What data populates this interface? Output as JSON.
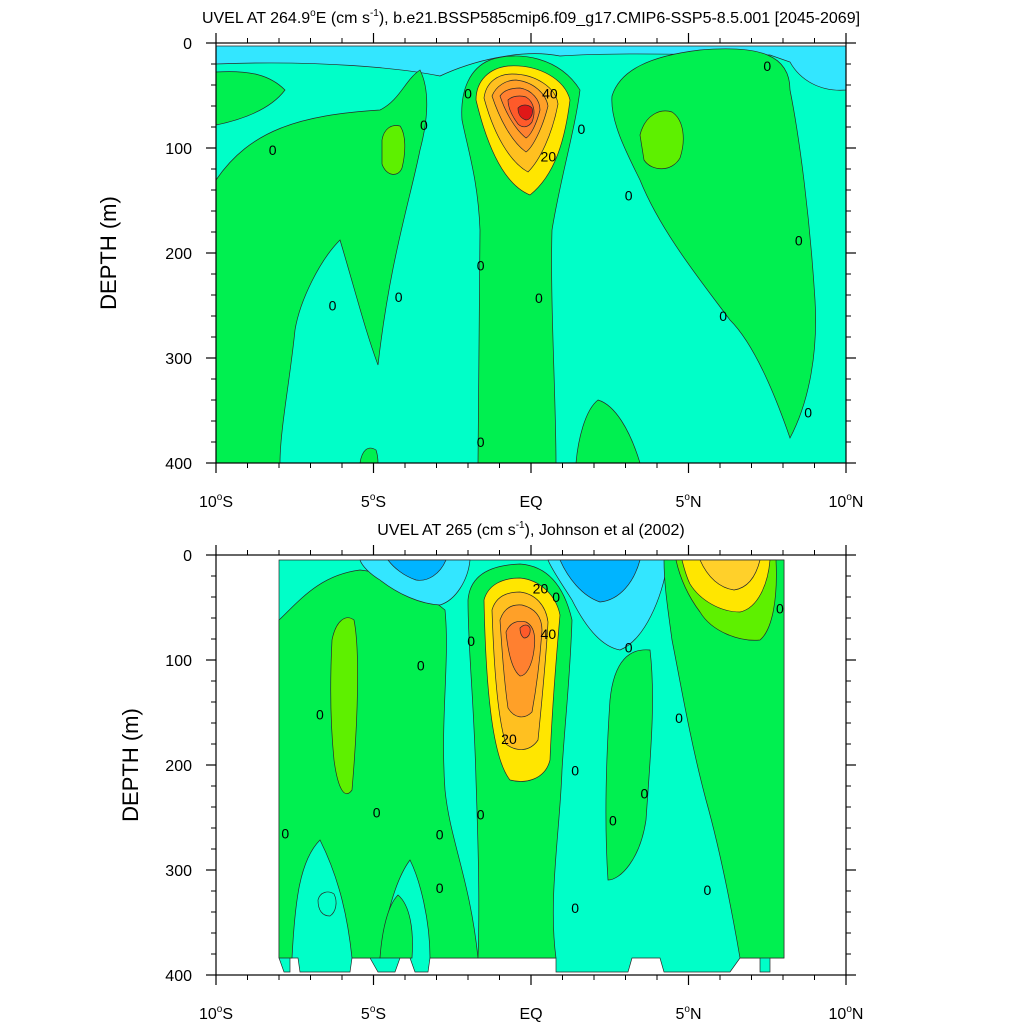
{
  "chart_data": [
    {
      "type": "heatmap",
      "subtype": "filled-contour",
      "title_main": "UVEL AT 264.9",
      "title_deg": "o",
      "title_units_pre": "E (cm s",
      "title_units_sup": "-1",
      "title_rest": "), b.e21.BSSP585cmip6.f09_g17.CMIP6-SSP5-8.5.001 [2045-2069]",
      "ylabel": "DEPTH (m)",
      "xlim": [
        -10,
        10
      ],
      "ylim": [
        0,
        400
      ],
      "y_inverted": true,
      "x_ticks": [
        {
          "value": -10,
          "num": "10",
          "deg": "o",
          "hemi": "S"
        },
        {
          "value": -5,
          "num": "5",
          "deg": "o",
          "hemi": "S"
        },
        {
          "value": 0,
          "num": "EQ",
          "deg": "",
          "hemi": ""
        },
        {
          "value": 5,
          "num": "5",
          "deg": "o",
          "hemi": "N"
        },
        {
          "value": 10,
          "num": "10",
          "deg": "o",
          "hemi": "N"
        }
      ],
      "y_ticks": [
        "0",
        "100",
        "200",
        "300",
        "400"
      ],
      "y_tick_values": [
        0,
        100,
        200,
        300,
        400
      ],
      "contour_labels": [
        {
          "text": "40",
          "lat": 0.6,
          "depth": 48
        },
        {
          "text": "20",
          "lat": 0.55,
          "depth": 108
        },
        {
          "text": "0",
          "lat": -2.0,
          "depth": 48
        },
        {
          "text": "0",
          "lat": -3.4,
          "depth": 78
        },
        {
          "text": "0",
          "lat": 1.6,
          "depth": 82
        },
        {
          "text": "0",
          "lat": -8.2,
          "depth": 102
        },
        {
          "text": "0",
          "lat": 3.1,
          "depth": 145
        },
        {
          "text": "0",
          "lat": 7.5,
          "depth": 22
        },
        {
          "text": "0",
          "lat": 8.5,
          "depth": 188
        },
        {
          "text": "0",
          "lat": -1.6,
          "depth": 212
        },
        {
          "text": "0",
          "lat": 0.25,
          "depth": 243
        },
        {
          "text": "0",
          "lat": -4.2,
          "depth": 242
        },
        {
          "text": "0",
          "lat": -6.3,
          "depth": 250
        },
        {
          "text": "0",
          "lat": 6.1,
          "depth": 260
        },
        {
          "text": "0",
          "lat": 8.8,
          "depth": 352
        },
        {
          "text": "0",
          "lat": -1.6,
          "depth": 380
        }
      ]
    },
    {
      "type": "heatmap",
      "subtype": "filled-contour",
      "title_main": "UVEL AT 265 (cm s",
      "title_units_sup": "-1",
      "title_rest": "), Johnson et al (2002)",
      "ylabel": "DEPTH (m)",
      "xlim": [
        -10,
        10
      ],
      "ylim": [
        0,
        400
      ],
      "y_inverted": true,
      "x_ticks": [
        {
          "value": -10,
          "num": "10",
          "deg": "o",
          "hemi": "S"
        },
        {
          "value": -5,
          "num": "5",
          "deg": "o",
          "hemi": "S"
        },
        {
          "value": 0,
          "num": "EQ",
          "deg": "",
          "hemi": ""
        },
        {
          "value": 5,
          "num": "5",
          "deg": "o",
          "hemi": "N"
        },
        {
          "value": 10,
          "num": "10",
          "deg": "o",
          "hemi": "N"
        }
      ],
      "y_ticks": [
        "0",
        "100",
        "200",
        "300",
        "400"
      ],
      "y_tick_values": [
        0,
        100,
        200,
        300,
        400
      ],
      "contour_labels": [
        {
          "text": "20",
          "lat": 0.3,
          "depth": 32
        },
        {
          "text": "0",
          "lat": 0.8,
          "depth": 40
        },
        {
          "text": "40",
          "lat": 0.55,
          "depth": 75
        },
        {
          "text": "20",
          "lat": -0.7,
          "depth": 175
        },
        {
          "text": "0",
          "lat": -1.9,
          "depth": 82
        },
        {
          "text": "0",
          "lat": -3.5,
          "depth": 105
        },
        {
          "text": "0",
          "lat": 3.1,
          "depth": 88
        },
        {
          "text": "0",
          "lat": 7.9,
          "depth": 51
        },
        {
          "text": "0",
          "lat": -6.7,
          "depth": 152
        },
        {
          "text": "0",
          "lat": 4.7,
          "depth": 155
        },
        {
          "text": "0",
          "lat": 1.4,
          "depth": 205
        },
        {
          "text": "0",
          "lat": 3.6,
          "depth": 227
        },
        {
          "text": "0",
          "lat": -7.8,
          "depth": 265
        },
        {
          "text": "0",
          "lat": -4.9,
          "depth": 245
        },
        {
          "text": "0",
          "lat": -2.9,
          "depth": 266
        },
        {
          "text": "0",
          "lat": -1.6,
          "depth": 247
        },
        {
          "text": "0",
          "lat": 2.6,
          "depth": 253
        },
        {
          "text": "0",
          "lat": -2.9,
          "depth": 317
        },
        {
          "text": "0",
          "lat": 5.6,
          "depth": 319
        },
        {
          "text": "0",
          "lat": 1.4,
          "depth": 336
        }
      ]
    }
  ]
}
